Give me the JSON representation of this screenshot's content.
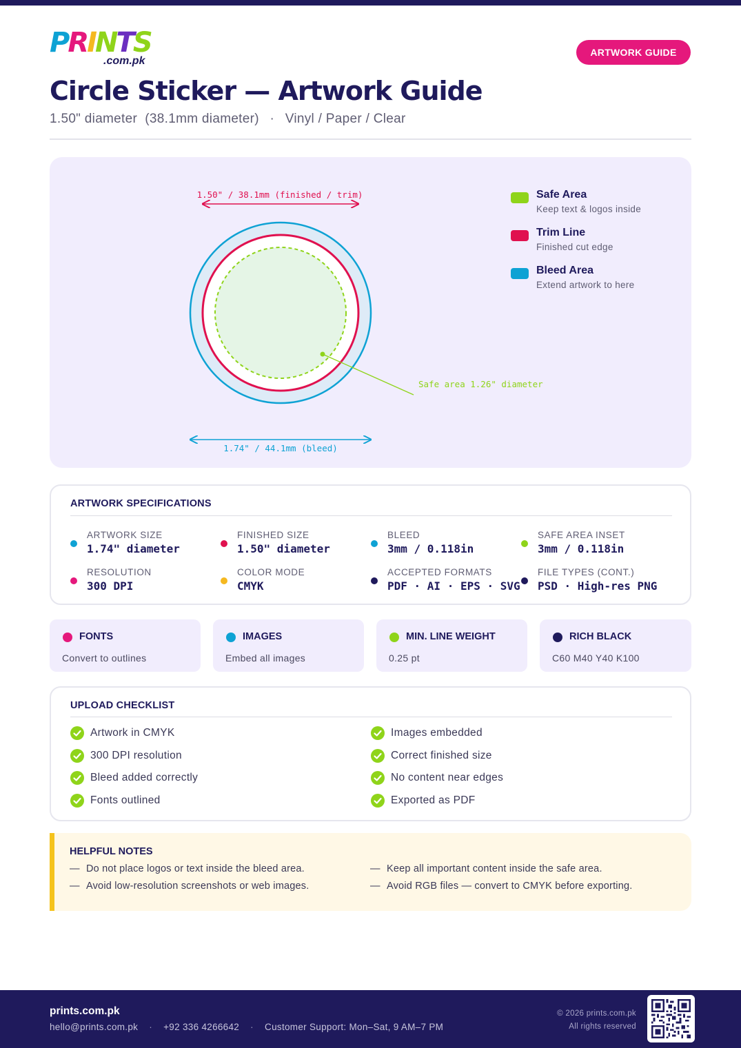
{
  "brand": {
    "logo_text": [
      "P",
      "R",
      "I",
      "N",
      "T",
      "S"
    ],
    "logo_colors": [
      "#0ea2d4",
      "#e5187c",
      "#f5b820",
      "#8fd41a",
      "#6b2fc0",
      "#8fd41a"
    ],
    "logo_domain": ".com.pk"
  },
  "header": {
    "badge": "ARTWORK GUIDE",
    "title": "Circle Sticker — Artwork Guide",
    "size": "1.50\" diameter",
    "size_metric": "(38.1mm diameter)",
    "separator": "·",
    "materials": "Vinyl / Paper / Clear"
  },
  "diagram": {
    "trim_label": "1.50\" / 38.1mm (finished / trim)",
    "bleed_label": "1.74\" / 44.1mm (bleed)",
    "safe_label": "Safe area 1.26\" diameter",
    "colors": {
      "safe": "#8fd41a",
      "trim": "#e0114f",
      "bleed": "#0ea2d4"
    },
    "legend": [
      {
        "title": "Safe Area",
        "desc": "Keep text & logos inside",
        "color": "#8fd41a"
      },
      {
        "title": "Trim Line",
        "desc": "Finished cut edge",
        "color": "#e0114f"
      },
      {
        "title": "Bleed Area",
        "desc": "Extend artwork to here",
        "color": "#0ea2d4"
      }
    ]
  },
  "specs": {
    "heading": "ARTWORK SPECIFICATIONS",
    "items": [
      {
        "label": "ARTWORK SIZE",
        "value": "1.74\" diameter",
        "color": "#0ea2d4"
      },
      {
        "label": "FINISHED SIZE",
        "value": "1.50\" diameter",
        "color": "#e0114f"
      },
      {
        "label": "BLEED",
        "value": "3mm / 0.118in",
        "color": "#0ea2d4"
      },
      {
        "label": "SAFE AREA INSET",
        "value": "3mm / 0.118in",
        "color": "#8fd41a"
      },
      {
        "label": "RESOLUTION",
        "value": "300 DPI",
        "color": "#e5187c"
      },
      {
        "label": "COLOR MODE",
        "value": "CMYK",
        "color": "#f5b820"
      },
      {
        "label": "ACCEPTED FORMATS",
        "value": "PDF · AI · EPS · SVG",
        "color": "#1f1a5c"
      },
      {
        "label": "FILE TYPES (CONT.)",
        "value": "PSD · High-res PNG",
        "color": "#1f1a5c"
      }
    ]
  },
  "tiles": [
    {
      "title": "FONTS",
      "desc": "Convert to outlines",
      "color": "#e5187c"
    },
    {
      "title": "IMAGES",
      "desc": "Embed all images",
      "color": "#0ea2d4"
    },
    {
      "title": "MIN. LINE WEIGHT",
      "desc": "0.25 pt",
      "color": "#8fd41a"
    },
    {
      "title": "RICH BLACK",
      "desc": "C60 M40 Y40 K100",
      "color": "#1f1a5c"
    }
  ],
  "checklist": {
    "heading": "UPLOAD CHECKLIST",
    "left": [
      "Artwork in CMYK",
      "300 DPI resolution",
      "Bleed added correctly",
      "Fonts outlined"
    ],
    "right": [
      "Images embedded",
      "Correct finished size",
      "No content near edges",
      "Exported as PDF"
    ]
  },
  "notes": {
    "heading": "HELPFUL NOTES",
    "dash": "—",
    "left": [
      "Do not place logos or text inside the bleed area.",
      "Avoid low-resolution screenshots or web images."
    ],
    "right": [
      "Keep all important content inside the safe area.",
      "Avoid RGB files — convert to CMYK before exporting."
    ]
  },
  "footer": {
    "brand": "prints.com.pk",
    "email": "hello@prints.com.pk",
    "phone": "+92 336 4266642",
    "support": "Customer Support: Mon–Sat, 9 AM–7 PM",
    "separator": "·",
    "copyright": "© 2026 prints.com.pk",
    "rights": "All rights reserved"
  }
}
